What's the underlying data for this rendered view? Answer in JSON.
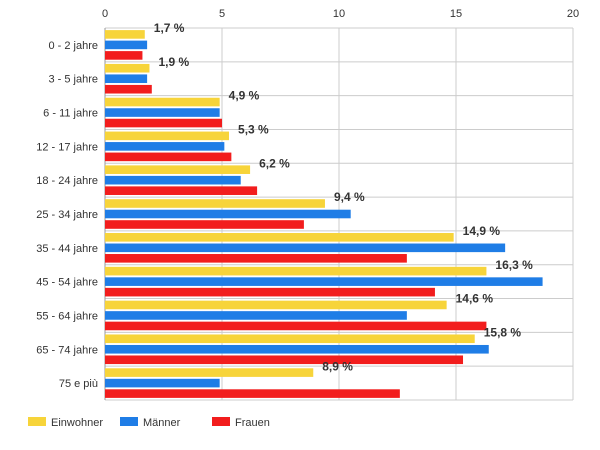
{
  "chart_data": {
    "type": "bar",
    "orientation": "horizontal",
    "categories": [
      "0 - 2 jahre",
      "3 - 5 jahre",
      "6 - 11 jahre",
      "12 - 17 jahre",
      "18 - 24 jahre",
      "25 - 34 jahre",
      "35 - 44 jahre",
      "45 - 54 jahre",
      "55 - 64 jahre",
      "65 - 74 jahre",
      "75 e più"
    ],
    "series": [
      {
        "name": "Einwohner",
        "color": "#f7d43a",
        "values": [
          1.7,
          1.9,
          4.9,
          5.3,
          6.2,
          9.4,
          14.9,
          16.3,
          14.6,
          15.8,
          8.9
        ],
        "labels": [
          "1,7 %",
          "1,9 %",
          "4,9 %",
          "5,3 %",
          "6,2 %",
          "9,4 %",
          "14,9 %",
          "16,3 %",
          "14,6 %",
          "15,8 %",
          "8,9 %"
        ]
      },
      {
        "name": "Männer",
        "color": "#1f7de6",
        "values": [
          1.8,
          1.8,
          4.9,
          5.1,
          5.8,
          10.5,
          17.1,
          18.7,
          12.9,
          16.4,
          4.9
        ]
      },
      {
        "name": "Frauen",
        "color": "#f21d1d",
        "values": [
          1.6,
          2.0,
          5.0,
          5.4,
          6.5,
          8.5,
          12.9,
          14.1,
          16.3,
          15.3,
          12.6
        ]
      }
    ],
    "xlim": [
      0,
      20
    ],
    "xticks": [
      0,
      5,
      10,
      15,
      20
    ],
    "xaxis_position": "top",
    "grid": true,
    "legend_position": "bottom-left",
    "title": "",
    "xlabel": "",
    "ylabel": ""
  }
}
